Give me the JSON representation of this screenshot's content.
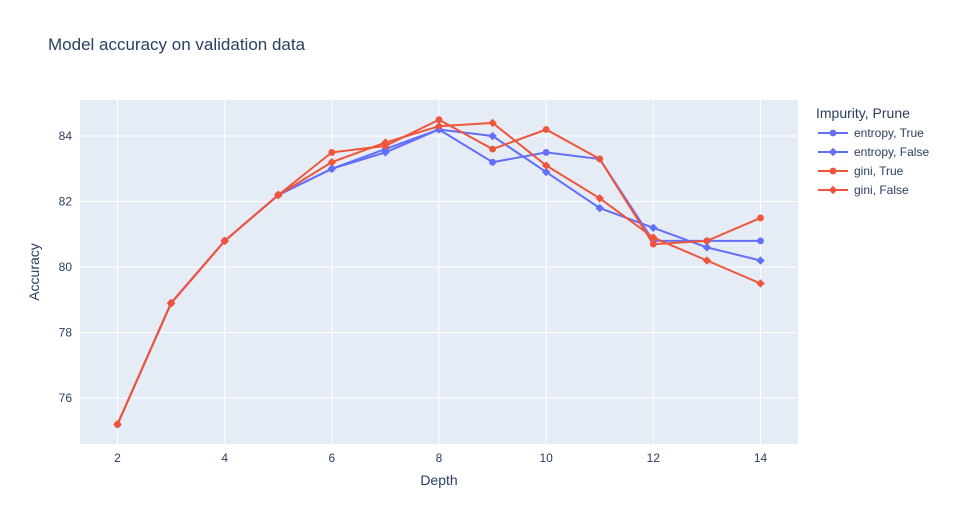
{
  "chart_data": {
    "type": "line",
    "title": "Model accuracy on validation data",
    "xlabel": "Depth",
    "ylabel": "Accuracy",
    "xlim": [
      1.3,
      14.7
    ],
    "ylim": [
      74.6,
      85.1
    ],
    "xticks": [
      2,
      4,
      6,
      8,
      10,
      12,
      14
    ],
    "yticks": [
      76,
      78,
      80,
      82,
      84
    ],
    "grid": true,
    "legend_title": "Impurity, Prune",
    "legend_position": "right",
    "x": [
      2,
      3,
      4,
      5,
      6,
      7,
      8,
      9,
      10,
      11,
      12,
      13,
      14
    ],
    "series": [
      {
        "name": "entropy, True",
        "color": "#636efa",
        "marker": "circle",
        "values": [
          75.2,
          78.9,
          80.8,
          82.2,
          83.0,
          83.6,
          84.2,
          83.2,
          83.5,
          83.3,
          80.8,
          80.8,
          80.8
        ]
      },
      {
        "name": "entropy, False",
        "color": "#636efa",
        "marker": "diamond",
        "values": [
          75.2,
          78.9,
          80.8,
          82.2,
          83.0,
          83.5,
          84.2,
          84.0,
          82.9,
          81.8,
          81.2,
          80.6,
          80.2
        ]
      },
      {
        "name": "gini, True",
        "color": "#ef553b",
        "marker": "circle",
        "values": [
          75.2,
          78.9,
          80.8,
          82.2,
          83.5,
          83.7,
          84.5,
          83.6,
          84.2,
          83.3,
          80.7,
          80.8,
          81.5
        ]
      },
      {
        "name": "gini, False",
        "color": "#ef553b",
        "marker": "diamond",
        "values": [
          75.2,
          78.9,
          80.8,
          82.2,
          83.2,
          83.8,
          84.3,
          84.4,
          83.1,
          82.1,
          80.9,
          80.2,
          79.5
        ]
      }
    ]
  }
}
